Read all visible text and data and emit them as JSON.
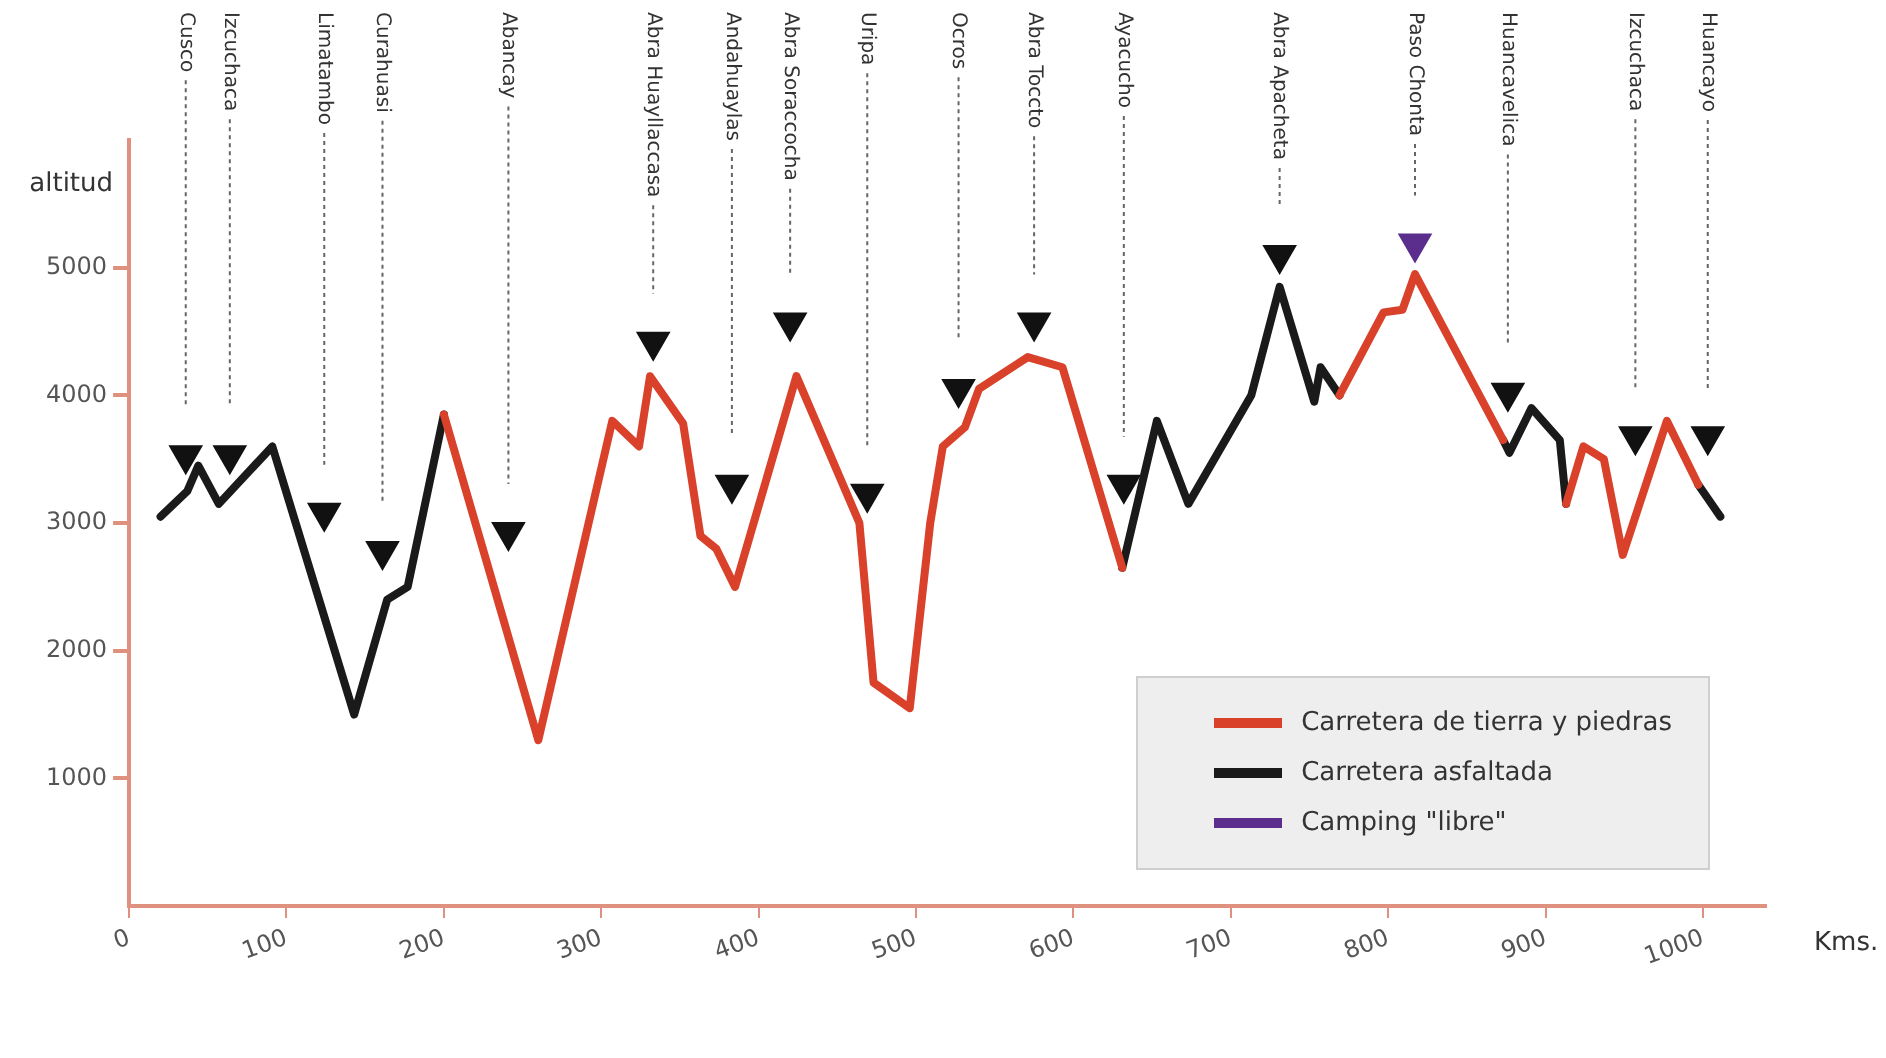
{
  "chart_data": {
    "type": "line",
    "xlabel": "Kms.",
    "ylabel": "altitud",
    "xlim": [
      0,
      1040
    ],
    "xticks": [
      0,
      100,
      200,
      300,
      400,
      500,
      600,
      700,
      800,
      900,
      1000
    ],
    "ylim": [
      0,
      6000
    ],
    "yticks": [
      1000,
      2000,
      3000,
      4000,
      5000
    ],
    "grid": false,
    "legend": "bottom right",
    "line_style": "solid",
    "series": [
      {
        "name": "Carretera de tierra y piedras",
        "color": "#d9412b",
        "x": [
          200,
          260,
          307,
          324,
          331,
          352,
          363,
          373,
          385,
          424,
          464,
          473,
          496,
          509,
          517,
          531,
          540,
          571,
          593,
          631,
          700,
          769,
          797,
          809,
          817,
          873,
          893,
          913,
          924,
          937,
          949,
          977,
          997
        ],
        "values": [
          3850,
          1300,
          3800,
          3600,
          4150,
          3780,
          2900,
          2800,
          2500,
          4150,
          3000,
          1750,
          1550,
          3000,
          3600,
          3750,
          4050,
          4300,
          4220,
          2650,
          null,
          4000,
          4650,
          4670,
          4950,
          3650,
          null,
          3150,
          3600,
          3500,
          2750,
          3800,
          3300
        ]
      },
      {
        "name": "Carretera asfaltada",
        "color": "#1a1a1a",
        "x": [
          20,
          37,
          44,
          57,
          91,
          143,
          164,
          177,
          200,
          400,
          631,
          653,
          673,
          713,
          731,
          753,
          757,
          769,
          820,
          873,
          877,
          891,
          909,
          913,
          950,
          997,
          1011
        ],
        "values": [
          3050,
          3250,
          3450,
          3150,
          3600,
          1500,
          2400,
          2500,
          3850,
          null,
          2650,
          3800,
          3150,
          4000,
          4850,
          3950,
          4220,
          4000,
          null,
          3650,
          3550,
          3900,
          3650,
          3150,
          null,
          3300,
          3050
        ]
      },
      {
        "type": "scatter",
        "marker": "triangle",
        "color": "#111111",
        "x": [
          36,
          64,
          124,
          161,
          241,
          333,
          383,
          420,
          469,
          527,
          575,
          632,
          731,
          876,
          957,
          1003
        ],
        "values": [
          3530,
          3530,
          3080,
          2780,
          2930,
          4420,
          3300,
          4570,
          3230,
          4050,
          4570,
          3300,
          5100,
          4020,
          3680,
          3680
        ]
      },
      {
        "name": "Camping \"libre\"",
        "type": "scatter",
        "marker": "triangle",
        "color": "#5b2d8c",
        "x": [
          817
        ],
        "values": [
          5190
        ]
      }
    ],
    "annotations": [
      "Cusco",
      "Izcuchaca",
      "Limatambo",
      "Curahuasi",
      "Abancay",
      "Abra Huayllaccasa",
      "Andahuaylas",
      "Abra Soraccocha",
      "Uripa",
      "Ocros",
      "Abra Toccto",
      "Ayacucho",
      "Abra Apacheta",
      "Huancavelica",
      "Izcuchaca",
      "Huancayo",
      "Paso Chonta"
    ]
  }
}
